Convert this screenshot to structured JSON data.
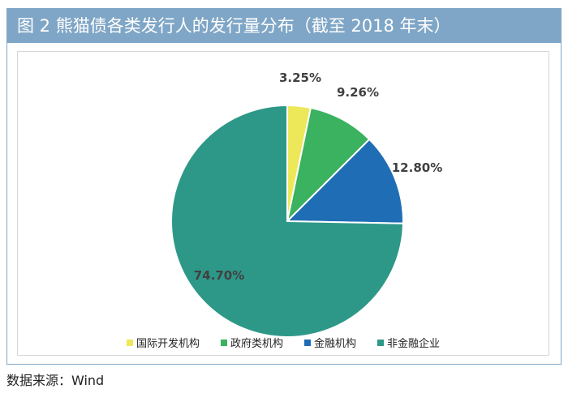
{
  "figure": {
    "title": "图 2  熊猫债各类发行人的发行量分布（截至 2018 年末）",
    "source": "数据来源：Wind"
  },
  "chart_data": {
    "type": "pie",
    "title": "",
    "unit": "%",
    "slices": [
      {
        "name": "国际开发机构",
        "value": 3.25,
        "label": "3.25%",
        "color": "#ede85a"
      },
      {
        "name": "政府类机构",
        "value": 9.26,
        "label": "9.26%",
        "color": "#3ab260"
      },
      {
        "name": "金融机构",
        "value": 12.8,
        "label": "12.80%",
        "color": "#1f6db5"
      },
      {
        "name": "非金融企业",
        "value": 74.7,
        "label": "74.70%",
        "color": "#2e9888"
      }
    ],
    "start": "12 o'clock",
    "direction": "clockwise",
    "legend_position": "bottom"
  }
}
